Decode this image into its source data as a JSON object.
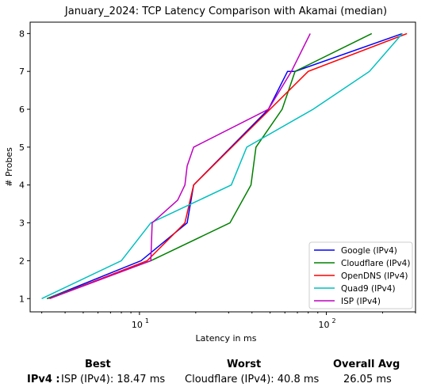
{
  "chart_data": {
    "type": "line",
    "title": "January_2024: TCP Latency Comparison with Akamai (median)",
    "xlabel": "Latency in ms",
    "ylabel": "# Probes",
    "xscale": "log",
    "xlim": [
      2.6,
      300
    ],
    "ylim": [
      0.65,
      8.3
    ],
    "x_ticks": [
      {
        "value": 10,
        "base": "10",
        "exp": "1"
      },
      {
        "value": 100,
        "base": "10",
        "exp": "2"
      }
    ],
    "y_ticks": [
      "1",
      "2",
      "3",
      "4",
      "5",
      "6",
      "7",
      "8"
    ],
    "grid": false,
    "legend": "bottom-right",
    "series": [
      {
        "name": "Google (IPv4)",
        "color": "#0000ff",
        "x": [
          3.2,
          10.2,
          18.0,
          19.5,
          49,
          62,
          68,
          255
        ],
        "y": [
          1,
          2,
          3,
          4,
          6,
          7,
          7,
          8
        ]
      },
      {
        "name": "Cloudflare (IPv4)",
        "color": "#008000",
        "x": [
          3.2,
          11.5,
          30.5,
          39.5,
          42,
          58,
          68,
          175
        ],
        "y": [
          1,
          2,
          3,
          4,
          5,
          6,
          7,
          8
        ]
      },
      {
        "name": "OpenDNS (IPv4)",
        "color": "#ff0000",
        "x": [
          3.3,
          11.0,
          17.5,
          19.5,
          50,
          80,
          270
        ],
        "y": [
          1,
          2,
          3,
          4,
          6,
          7,
          8
        ]
      },
      {
        "name": "Quad9 (IPv4)",
        "color": "#00bfbf",
        "x": [
          3.0,
          8.0,
          11.5,
          31.0,
          37.5,
          85,
          170,
          255
        ],
        "y": [
          1,
          2,
          3,
          4,
          5,
          6,
          7,
          8
        ]
      },
      {
        "name": "ISP (IPv4)",
        "color": "#bf00bf",
        "x": [
          3.3,
          11.5,
          11.7,
          16.0,
          17.5,
          18.0,
          19.5,
          49,
          65,
          82
        ],
        "y": [
          1,
          2,
          3,
          3.6,
          4,
          4.5,
          5,
          6,
          7,
          8
        ]
      }
    ]
  },
  "summary": {
    "best_header": "Best",
    "worst_header": "Worst",
    "avg_header": "Overall Avg",
    "row_label": "IPv4 :",
    "best_value": "ISP (IPv4): 18.47 ms",
    "worst_value": "Cloudflare (IPv4): 40.8 ms",
    "avg_value": "26.05 ms"
  }
}
